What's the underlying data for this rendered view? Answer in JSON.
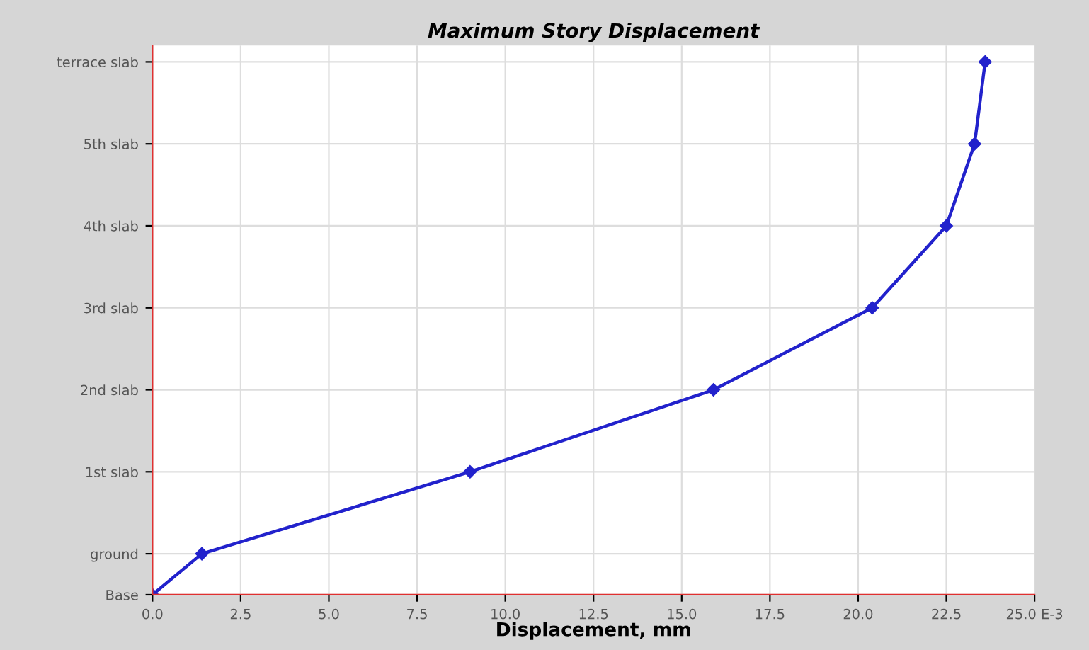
{
  "chart_data": {
    "type": "line",
    "title": "Maximum Story Displacement",
    "xlabel": "Displacement, mm",
    "x": [
      0.0,
      1.4,
      9.0,
      15.9,
      20.4,
      22.5,
      23.3,
      23.6
    ],
    "series": [
      {
        "color": "#2222cc",
        "values": [
          0,
          0.5,
          1.5,
          2.5,
          3.5,
          4.5,
          5.5,
          6.5
        ]
      }
    ],
    "xlim": [
      0,
      25
    ],
    "xticks": [
      {
        "value": 0,
        "label": "0.0"
      },
      {
        "value": 2.5,
        "label": "2.5"
      },
      {
        "value": 5,
        "label": "5.0"
      },
      {
        "value": 7.5,
        "label": "7.5"
      },
      {
        "value": 10,
        "label": "10.0"
      },
      {
        "value": 12.5,
        "label": "12.5"
      },
      {
        "value": 15,
        "label": "15.0"
      },
      {
        "value": 17.5,
        "label": "17.5"
      },
      {
        "value": 20,
        "label": "20.0"
      },
      {
        "value": 22.5,
        "label": "22.5"
      },
      {
        "value": 25,
        "label": "25.0 E-3"
      }
    ],
    "ylim": [
      0,
      6.7
    ],
    "yticks": [
      {
        "value": 0,
        "label": "Base"
      },
      {
        "value": 0.5,
        "label": "ground"
      },
      {
        "value": 1.5,
        "label": "1st slab"
      },
      {
        "value": 2.5,
        "label": "2nd slab"
      },
      {
        "value": 3.5,
        "label": "3rd slab"
      },
      {
        "value": 4.5,
        "label": "4th slab"
      },
      {
        "value": 5.5,
        "label": "5th slab"
      },
      {
        "value": 6.5,
        "label": "terrace slab"
      }
    ],
    "grid": true,
    "marker": "diamond",
    "line_style": "solid"
  }
}
